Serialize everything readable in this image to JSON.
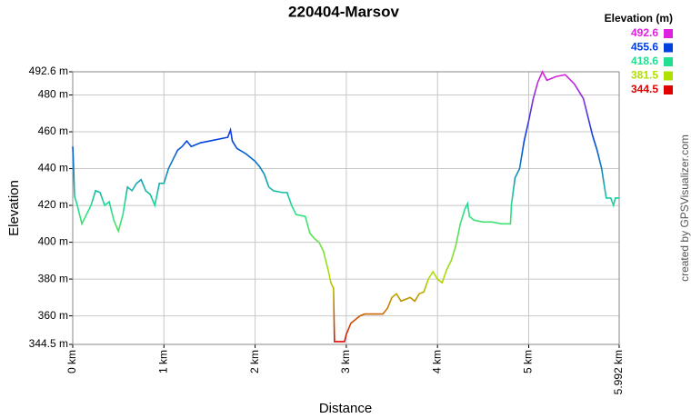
{
  "chart_data": {
    "type": "line",
    "title": "220404-Marsov",
    "x_label": "Distance",
    "y_label": "Elevation",
    "credit": "created by GPSVisualizer.com",
    "legend_title": "Elevation (m)",
    "legend": [
      {
        "value": 492.6,
        "color": "#e020e0"
      },
      {
        "value": 455.6,
        "color": "#0040e0"
      },
      {
        "value": 418.6,
        "color": "#20e090"
      },
      {
        "value": 381.5,
        "color": "#b0e000"
      },
      {
        "value": 344.5,
        "color": "#e00000"
      }
    ],
    "grid": true,
    "xlim": [
      0,
      5.992
    ],
    "ylim": [
      344.5,
      492.6
    ],
    "xticks": [
      {
        "value": 0,
        "label": "0 km"
      },
      {
        "value": 1,
        "label": "1 km"
      },
      {
        "value": 2,
        "label": "2 km"
      },
      {
        "value": 3,
        "label": "3 km"
      },
      {
        "value": 4,
        "label": "4 km"
      },
      {
        "value": 5,
        "label": "5 km"
      },
      {
        "value": 5.992,
        "label": "5.992 km"
      }
    ],
    "yticks": [
      {
        "value": 344.5,
        "label": "344.5 m"
      },
      {
        "value": 360,
        "label": "360 m"
      },
      {
        "value": 380,
        "label": "380 m"
      },
      {
        "value": 400,
        "label": "400 m"
      },
      {
        "value": 420,
        "label": "420 m"
      },
      {
        "value": 440,
        "label": "440 m"
      },
      {
        "value": 460,
        "label": "460 m"
      },
      {
        "value": 480,
        "label": "480 m"
      },
      {
        "value": 492.6,
        "label": "492.6 m"
      }
    ],
    "x": [
      0,
      0.01,
      0.02,
      0.05,
      0.1,
      0.15,
      0.2,
      0.25,
      0.3,
      0.35,
      0.4,
      0.45,
      0.5,
      0.55,
      0.6,
      0.65,
      0.7,
      0.75,
      0.8,
      0.85,
      0.9,
      0.95,
      1.0,
      1.05,
      1.1,
      1.15,
      1.2,
      1.25,
      1.3,
      1.4,
      1.5,
      1.6,
      1.7,
      1.73,
      1.75,
      1.8,
      1.9,
      2.0,
      2.05,
      2.1,
      2.15,
      2.2,
      2.3,
      2.35,
      2.4,
      2.45,
      2.55,
      2.6,
      2.65,
      2.7,
      2.75,
      2.8,
      2.83,
      2.86,
      2.87,
      2.9,
      2.95,
      2.98,
      3.0,
      3.05,
      3.1,
      3.15,
      3.2,
      3.3,
      3.4,
      3.45,
      3.5,
      3.55,
      3.6,
      3.7,
      3.75,
      3.8,
      3.85,
      3.9,
      3.95,
      4.0,
      4.05,
      4.1,
      4.15,
      4.2,
      4.25,
      4.3,
      4.33,
      4.35,
      4.4,
      4.5,
      4.6,
      4.7,
      4.8,
      4.81,
      4.85,
      4.9,
      4.95,
      5.0,
      5.05,
      5.1,
      5.15,
      5.2,
      5.3,
      5.4,
      5.5,
      5.55,
      5.6,
      5.65,
      5.7,
      5.75,
      5.8,
      5.85,
      5.9,
      5.93,
      5.95,
      5.992
    ],
    "values": [
      452,
      440,
      425,
      420,
      410,
      415,
      420,
      428,
      427,
      420,
      422,
      412,
      406,
      415,
      430,
      428,
      432,
      434,
      428,
      426,
      420,
      432,
      432,
      440,
      445,
      450,
      452,
      455,
      452,
      454,
      455,
      456,
      457,
      461,
      455,
      451,
      448,
      444,
      441,
      437,
      430,
      428,
      427,
      427,
      420,
      415,
      414,
      405,
      402,
      400,
      395,
      385,
      378,
      375,
      346,
      346,
      346,
      346,
      350,
      356,
      358,
      360,
      361,
      361,
      361,
      364,
      370,
      372,
      368,
      370,
      368,
      372,
      373,
      380,
      384,
      380,
      378,
      385,
      390,
      398,
      410,
      418,
      421,
      414,
      412,
      411,
      411,
      410,
      410,
      420,
      435,
      440,
      455,
      466,
      478,
      487,
      492.6,
      488,
      490,
      491,
      486,
      482,
      478,
      468,
      458,
      450,
      440,
      424,
      424,
      420,
      424,
      424
    ]
  }
}
